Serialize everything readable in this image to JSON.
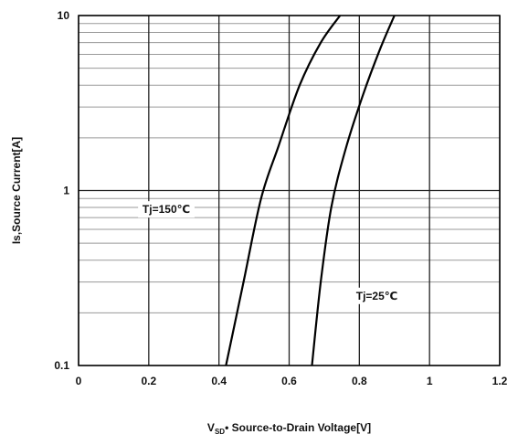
{
  "chart_data": {
    "type": "line",
    "x_scale": "linear",
    "y_scale": "log",
    "xlim": [
      0,
      1.2
    ],
    "ylim": [
      0.1,
      10
    ],
    "x_ticks": [
      "0",
      "0.2",
      "0.4",
      "0.6",
      "0.8",
      "1",
      "1.2"
    ],
    "y_ticks": [
      "0.1",
      "1",
      "10"
    ],
    "xlabel_sub": "SD",
    "xlabel_rest": "Source-to-Drain Voltage[V]",
    "ylabel": "Is,Source Current[A]",
    "grid": true,
    "series": [
      {
        "points": [
          [
            0.42,
            0.1
          ],
          [
            0.47,
            0.3
          ],
          [
            0.52,
            0.9
          ],
          [
            0.57,
            1.8
          ],
          [
            0.63,
            4.0
          ],
          [
            0.69,
            7.0
          ],
          [
            0.745,
            10.0
          ]
        ],
        "color": "#000000"
      },
      {
        "points": [
          [
            0.665,
            0.1
          ],
          [
            0.69,
            0.3
          ],
          [
            0.72,
            0.8
          ],
          [
            0.76,
            1.7
          ],
          [
            0.81,
            3.5
          ],
          [
            0.86,
            6.5
          ],
          [
            0.9,
            10.0
          ]
        ],
        "color": "#000000"
      }
    ],
    "annotations": [
      {
        "text": "Tj=150℃",
        "x": 0.25,
        "y": 0.78
      },
      {
        "text": "Tj=25℃",
        "x": 0.85,
        "y": 0.25
      }
    ]
  }
}
